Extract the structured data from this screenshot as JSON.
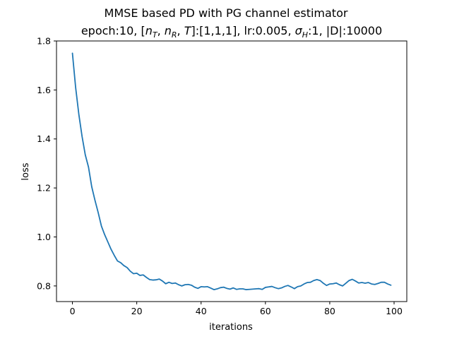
{
  "chart_data": {
    "type": "line",
    "title_line1": "MMSE based PD with PG channel estimator",
    "title_line2_prefix": "epoch:10, [",
    "title_line2_mid": "]:[1,1,1], lr:0.005, ",
    "title_line2_sigma_sub": "H",
    "title_line2_suffix": ":1, |D|:10000",
    "title_vars": [
      "n",
      "T",
      "n",
      "R",
      "T"
    ],
    "xlabel": "iterations",
    "ylabel": "loss",
    "xlim": [
      -4.95,
      103.95
    ],
    "ylim": [
      0.7362,
      1.8
    ],
    "xticks": [
      0,
      20,
      40,
      60,
      80,
      100
    ],
    "xtick_labels": [
      "0",
      "20",
      "40",
      "60",
      "80",
      "100"
    ],
    "yticks": [
      0.8,
      1.0,
      1.2,
      1.4,
      1.6,
      1.8
    ],
    "ytick_labels": [
      "0.8",
      "1.0",
      "1.2",
      "1.4",
      "1.6",
      "1.8"
    ],
    "grid": false,
    "line_color": "#1f77b4",
    "series": [
      {
        "x": [
          0,
          1,
          2,
          3,
          4,
          5,
          6,
          7,
          8,
          9,
          10,
          11,
          12,
          13,
          14,
          15,
          16,
          17,
          18,
          19,
          20,
          21,
          22,
          23,
          24,
          25,
          26,
          27,
          28,
          29,
          30,
          31,
          32,
          33,
          34,
          35,
          36,
          37,
          38,
          39,
          40,
          41,
          42,
          43,
          44,
          45,
          46,
          47,
          48,
          49,
          50,
          51,
          52,
          53,
          54,
          55,
          56,
          57,
          58,
          59,
          60,
          61,
          62,
          63,
          64,
          65,
          66,
          67,
          68,
          69,
          70,
          71,
          72,
          73,
          74,
          75,
          76,
          77,
          78,
          79,
          80,
          81,
          82,
          83,
          84,
          85,
          86,
          87,
          88,
          89,
          90,
          91,
          92,
          93,
          94,
          95,
          96,
          97,
          98,
          99
        ],
        "values": [
          1.75,
          1.61,
          1.5,
          1.41,
          1.335,
          1.285,
          1.205,
          1.15,
          1.1,
          1.045,
          1.01,
          0.98,
          0.95,
          0.925,
          0.902,
          0.895,
          0.883,
          0.875,
          0.86,
          0.85,
          0.852,
          0.843,
          0.845,
          0.835,
          0.826,
          0.824,
          0.825,
          0.828,
          0.82,
          0.809,
          0.815,
          0.81,
          0.812,
          0.805,
          0.8,
          0.805,
          0.806,
          0.803,
          0.795,
          0.79,
          0.797,
          0.796,
          0.797,
          0.791,
          0.785,
          0.788,
          0.793,
          0.795,
          0.79,
          0.787,
          0.792,
          0.786,
          0.788,
          0.788,
          0.785,
          0.786,
          0.787,
          0.788,
          0.789,
          0.786,
          0.794,
          0.796,
          0.798,
          0.793,
          0.789,
          0.792,
          0.798,
          0.802,
          0.796,
          0.789,
          0.797,
          0.8,
          0.808,
          0.814,
          0.815,
          0.822,
          0.826,
          0.822,
          0.811,
          0.802,
          0.808,
          0.809,
          0.812,
          0.805,
          0.8,
          0.811,
          0.822,
          0.827,
          0.82,
          0.812,
          0.814,
          0.811,
          0.814,
          0.808,
          0.806,
          0.81,
          0.815,
          0.815,
          0.808,
          0.803
        ]
      }
    ]
  }
}
